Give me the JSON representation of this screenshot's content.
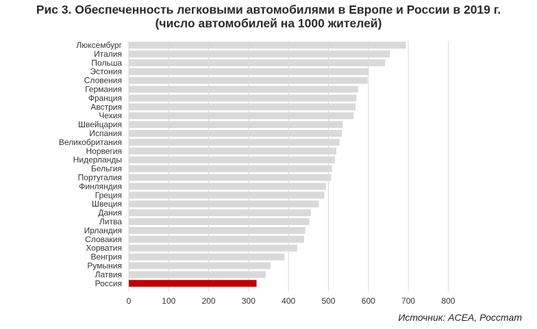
{
  "chart_data": {
    "type": "bar",
    "orientation": "horizontal",
    "title": "Рис 3. Обеспеченность легковыми автомобилями в Европе и России в 2019 г.",
    "subtitle": "(число автомобилей на 1000 жителей)",
    "source": "Источник: ACEA, Росстат",
    "categories": [
      "Люксембург",
      "Италия",
      "Польша",
      "Эстония",
      "Словения",
      "Германия",
      "Франция",
      "Австрия",
      "Чехия",
      "Швейцария",
      "Испания",
      "Великобритания",
      "Норвегия",
      "Нидерланды",
      "Бельгия",
      "Португалия",
      "Финляндия",
      "Греция",
      "Швеция",
      "Дания",
      "Литва",
      "Ирландия",
      "Словакия",
      "Хорватия",
      "Венгрия",
      "Румыния",
      "Латвия",
      "Россия"
    ],
    "values": [
      694,
      654,
      642,
      601,
      598,
      574,
      570,
      568,
      563,
      536,
      534,
      528,
      520,
      516,
      509,
      507,
      494,
      490,
      476,
      456,
      452,
      442,
      439,
      422,
      390,
      355,
      343,
      320
    ],
    "xlim": [
      0,
      800
    ],
    "xticks": [
      0,
      100,
      200,
      300,
      400,
      500,
      600,
      700,
      800
    ],
    "grid": true,
    "colors": {
      "bar": "#d9d9d9",
      "highlight": "#c00000",
      "grid": "#d9d9d9"
    },
    "highlight_category": "Россия"
  }
}
